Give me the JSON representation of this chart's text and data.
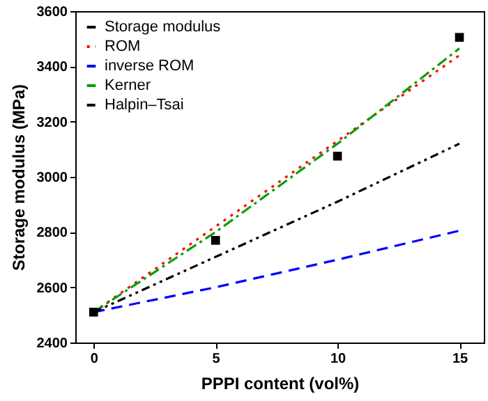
{
  "chart_data": {
    "type": "line",
    "xlabel": "PPPI content (vol%)",
    "ylabel": "Storage modulus (MPa)",
    "xlim": [
      -0.75,
      16
    ],
    "ylim": [
      2400,
      3600
    ],
    "xticks": [
      0,
      5,
      10,
      15
    ],
    "yticks": [
      2400,
      2600,
      2800,
      3000,
      3200,
      3400,
      3600
    ],
    "grid": false,
    "legend": "top left",
    "series": [
      {
        "name": "Storage modulus",
        "type": "scatter",
        "marker": "square",
        "color": "#000000",
        "x": [
          0,
          5,
          10,
          15
        ],
        "values": [
          2510,
          2770,
          3075,
          3505
        ]
      },
      {
        "name": "ROM",
        "color": "#ff0000",
        "line_style": "dotted",
        "x": [
          0,
          5,
          10,
          15
        ],
        "values": [
          2510,
          2820,
          3130,
          3440
        ]
      },
      {
        "name": "inverse ROM",
        "color": "#0000ff",
        "line_style": "dashed",
        "x": [
          0,
          5,
          10,
          15
        ],
        "values": [
          2510,
          2600,
          2700,
          2805
        ]
      },
      {
        "name": "Kerner",
        "color": "#00a000",
        "line_style": "dashdot",
        "x": [
          0,
          5,
          10,
          15
        ],
        "values": [
          2510,
          2800,
          3120,
          3465
        ]
      },
      {
        "name": "Halpin–Tsai",
        "color": "#000000",
        "line_style": "dashdotdot",
        "x": [
          0,
          5,
          10,
          15
        ],
        "values": [
          2510,
          2710,
          2910,
          3120
        ]
      }
    ]
  }
}
